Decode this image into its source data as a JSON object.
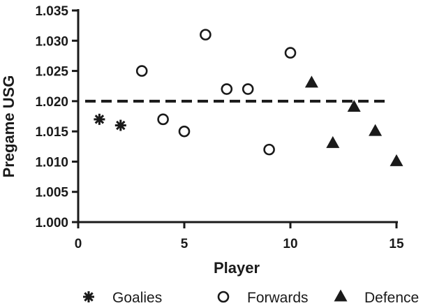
{
  "chart_data": {
    "type": "scatter",
    "xlabel": "Player",
    "ylabel": "Pregame USG",
    "xlim": [
      0,
      15
    ],
    "ylim": [
      1.0,
      1.035
    ],
    "x_ticks": [
      "0",
      "5",
      "10",
      "15"
    ],
    "y_ticks": [
      "1.000",
      "1.005",
      "1.010",
      "1.015",
      "1.020",
      "1.025",
      "1.030",
      "1.035"
    ],
    "reference_line": {
      "y": 1.02,
      "style": "dashed"
    },
    "legend_position": "bottom",
    "series": [
      {
        "name": "Goalies",
        "marker": "asterisk",
        "points": [
          {
            "x": 1,
            "y": 1.017
          },
          {
            "x": 2,
            "y": 1.016
          }
        ]
      },
      {
        "name": "Forwards",
        "marker": "open-circle",
        "points": [
          {
            "x": 3,
            "y": 1.025
          },
          {
            "x": 4,
            "y": 1.017
          },
          {
            "x": 5,
            "y": 1.015
          },
          {
            "x": 6,
            "y": 1.031
          },
          {
            "x": 7,
            "y": 1.022
          },
          {
            "x": 8,
            "y": 1.022
          },
          {
            "x": 9,
            "y": 1.012
          },
          {
            "x": 10,
            "y": 1.028
          }
        ]
      },
      {
        "name": "Defence",
        "marker": "filled-triangle",
        "points": [
          {
            "x": 11,
            "y": 1.023
          },
          {
            "x": 12,
            "y": 1.013
          },
          {
            "x": 13,
            "y": 1.019
          },
          {
            "x": 14,
            "y": 1.015
          },
          {
            "x": 15,
            "y": 1.01
          }
        ]
      }
    ]
  }
}
